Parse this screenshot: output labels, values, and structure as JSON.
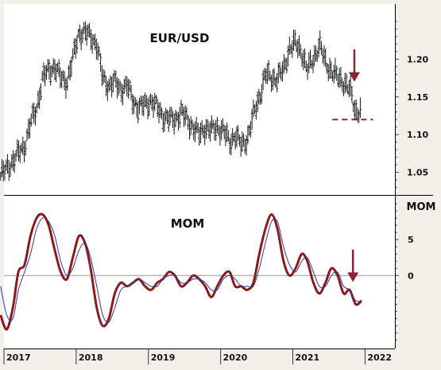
{
  "chart_data": [
    {
      "type": "line",
      "style": "bar",
      "title": "EUR/USD",
      "x_ticks": [
        "2017",
        "2018",
        "2019",
        "2020",
        "2021",
        "2022"
      ],
      "xlim": [
        "2017-01-01",
        "2022-06-01"
      ],
      "ylim": [
        1.02,
        1.27
      ],
      "y_ticks": [
        "1.05",
        "1.10",
        "1.15",
        "1.20"
      ],
      "series": [
        {
          "x": [
            "2016-12-15",
            "2017-01-15",
            "2017-02-15",
            "2017-03-15",
            "2017-04-15",
            "2017-05-15",
            "2017-06-15",
            "2017-07-15",
            "2017-08-15",
            "2017-09-15",
            "2017-10-15",
            "2017-11-15",
            "2017-12-15",
            "2018-01-15",
            "2018-02-15",
            "2018-03-15",
            "2018-04-15",
            "2018-05-15",
            "2018-06-15",
            "2018-07-15",
            "2018-08-15",
            "2018-09-15",
            "2018-10-15",
            "2018-11-15",
            "2018-12-15",
            "2019-01-15",
            "2019-02-15",
            "2019-03-15",
            "2019-04-15",
            "2019-05-15",
            "2019-06-15",
            "2019-07-15",
            "2019-08-15",
            "2019-09-15",
            "2019-10-15",
            "2019-11-15",
            "2019-12-15",
            "2020-01-15",
            "2020-02-15",
            "2020-03-15",
            "2020-04-15",
            "2020-05-15",
            "2020-06-15",
            "2020-07-15",
            "2020-08-15",
            "2020-09-15",
            "2020-10-15",
            "2020-11-15",
            "2020-12-15",
            "2021-01-15",
            "2021-02-15",
            "2021-03-15",
            "2021-04-15",
            "2021-05-15",
            "2021-06-15",
            "2021-07-15",
            "2021-08-15",
            "2021-09-15",
            "2021-10-15",
            "2021-11-15",
            "2021-12-15"
          ],
          "values": [
            1.045,
            1.055,
            1.065,
            1.075,
            1.085,
            1.115,
            1.135,
            1.175,
            1.185,
            1.19,
            1.175,
            1.17,
            1.2,
            1.235,
            1.235,
            1.23,
            1.22,
            1.175,
            1.165,
            1.17,
            1.16,
            1.165,
            1.145,
            1.135,
            1.14,
            1.145,
            1.135,
            1.125,
            1.12,
            1.12,
            1.13,
            1.12,
            1.11,
            1.1,
            1.11,
            1.105,
            1.11,
            1.105,
            1.09,
            1.1,
            1.085,
            1.095,
            1.125,
            1.15,
            1.18,
            1.175,
            1.175,
            1.185,
            1.215,
            1.22,
            1.21,
            1.185,
            1.2,
            1.22,
            1.195,
            1.185,
            1.175,
            1.17,
            1.16,
            1.13,
            1.135
          ]
        }
      ],
      "reference_line": {
        "value": 1.12,
        "color": "#8b2332",
        "style": "dashed"
      },
      "annotation": {
        "type": "arrow-down",
        "x": "2021-10-15",
        "color": "#8b2332"
      },
      "grid": false
    },
    {
      "type": "line",
      "title": "MOM",
      "ylabel": "MOM",
      "x_ticks": [
        "2017",
        "2018",
        "2019",
        "2020",
        "2021",
        "2022"
      ],
      "xlim": [
        "2017-01-01",
        "2022-06-01"
      ],
      "ylim": [
        -9.5,
        11
      ],
      "y_ticks": [
        "0",
        "5"
      ],
      "zero_line": true,
      "series": [
        {
          "color": "#8b1a1a",
          "x": [
            "2016-12-15",
            "2017-01-15",
            "2017-02-15",
            "2017-03-15",
            "2017-04-15",
            "2017-05-15",
            "2017-06-15",
            "2017-07-15",
            "2017-08-15",
            "2017-09-15",
            "2017-10-15",
            "2017-11-15",
            "2017-12-15",
            "2018-01-15",
            "2018-02-15",
            "2018-03-15",
            "2018-04-15",
            "2018-05-15",
            "2018-06-15",
            "2018-07-15",
            "2018-08-15",
            "2018-09-15",
            "2018-10-15",
            "2018-11-15",
            "2018-12-15",
            "2019-01-15",
            "2019-02-15",
            "2019-03-15",
            "2019-04-15",
            "2019-05-15",
            "2019-06-15",
            "2019-07-15",
            "2019-08-15",
            "2019-09-15",
            "2019-10-15",
            "2019-11-15",
            "2019-12-15",
            "2020-01-15",
            "2020-02-15",
            "2020-03-15",
            "2020-04-15",
            "2020-05-15",
            "2020-06-15",
            "2020-07-15",
            "2020-08-15",
            "2020-09-15",
            "2020-10-15",
            "2020-11-15",
            "2020-12-15",
            "2021-01-15",
            "2021-02-15",
            "2021-03-15",
            "2021-04-15",
            "2021-05-15",
            "2021-06-15",
            "2021-07-15",
            "2021-08-15",
            "2021-09-15",
            "2021-10-15",
            "2021-11-15",
            "2021-12-15"
          ],
          "values": [
            -5.5,
            -7.5,
            -4.5,
            0.5,
            1.5,
            5.5,
            8.0,
            8.5,
            7.0,
            3.5,
            0.5,
            -0.5,
            2.5,
            5.5,
            4.5,
            1.0,
            -4.5,
            -7.0,
            -6.0,
            -2.5,
            -1.0,
            -1.5,
            -1.0,
            -0.5,
            -1.5,
            -2.0,
            -1.0,
            -0.5,
            0.5,
            0.0,
            -1.5,
            -1.0,
            0.0,
            -0.5,
            -1.5,
            -3.0,
            -1.5,
            0.0,
            0.5,
            -1.5,
            -1.5,
            -2.0,
            -1.0,
            3.0,
            6.5,
            8.5,
            6.5,
            2.0,
            0.0,
            1.0,
            3.0,
            2.0,
            -1.0,
            -2.5,
            -1.0,
            1.0,
            0.0,
            -2.5,
            -2.0,
            -4.0,
            -3.5
          ]
        },
        {
          "color": "#2b3aa8",
          "x": [
            "2016-12-15",
            "2017-01-15",
            "2017-02-15",
            "2017-03-15",
            "2017-04-15",
            "2017-05-15",
            "2017-06-15",
            "2017-07-15",
            "2017-08-15",
            "2017-09-15",
            "2017-10-15",
            "2017-11-15",
            "2017-12-15",
            "2018-01-15",
            "2018-02-15",
            "2018-03-15",
            "2018-04-15",
            "2018-05-15",
            "2018-06-15",
            "2018-07-15",
            "2018-08-15",
            "2018-09-15",
            "2018-10-15",
            "2018-11-15",
            "2018-12-15",
            "2019-01-15",
            "2019-02-15",
            "2019-03-15",
            "2019-04-15",
            "2019-05-15",
            "2019-06-15",
            "2019-07-15",
            "2019-08-15",
            "2019-09-15",
            "2019-10-15",
            "2019-11-15",
            "2019-12-15",
            "2020-01-15",
            "2020-02-15",
            "2020-03-15",
            "2020-04-15",
            "2020-05-15",
            "2020-06-15",
            "2020-07-15",
            "2020-08-15",
            "2020-09-15",
            "2020-10-15",
            "2020-11-15",
            "2020-12-15",
            "2021-01-15",
            "2021-02-15",
            "2021-03-15",
            "2021-04-15",
            "2021-05-15",
            "2021-06-15",
            "2021-07-15",
            "2021-08-15",
            "2021-09-15",
            "2021-10-15",
            "2021-11-15",
            "2021-12-15"
          ],
          "values": [
            -1.5,
            -5.5,
            -6.0,
            -2.0,
            0.5,
            3.0,
            6.5,
            8.0,
            7.5,
            5.5,
            2.0,
            0.0,
            1.0,
            3.5,
            4.5,
            2.5,
            -1.5,
            -5.5,
            -6.5,
            -4.5,
            -2.0,
            -1.5,
            -1.0,
            -0.5,
            -1.0,
            -1.5,
            -1.5,
            -0.5,
            0.0,
            0.0,
            -1.0,
            -1.0,
            -0.5,
            -0.5,
            -1.0,
            -2.0,
            -2.0,
            -0.5,
            0.0,
            -0.5,
            -1.5,
            -1.5,
            -1.5,
            1.0,
            4.5,
            7.5,
            7.5,
            4.0,
            1.5,
            0.5,
            2.0,
            2.5,
            0.5,
            -1.5,
            -1.5,
            0.0,
            0.5,
            -1.5,
            -2.0,
            -3.5,
            -3.5
          ]
        }
      ],
      "annotation": {
        "type": "arrow-down",
        "x": "2021-11-01",
        "color": "#8b2332"
      },
      "grid": false
    }
  ]
}
